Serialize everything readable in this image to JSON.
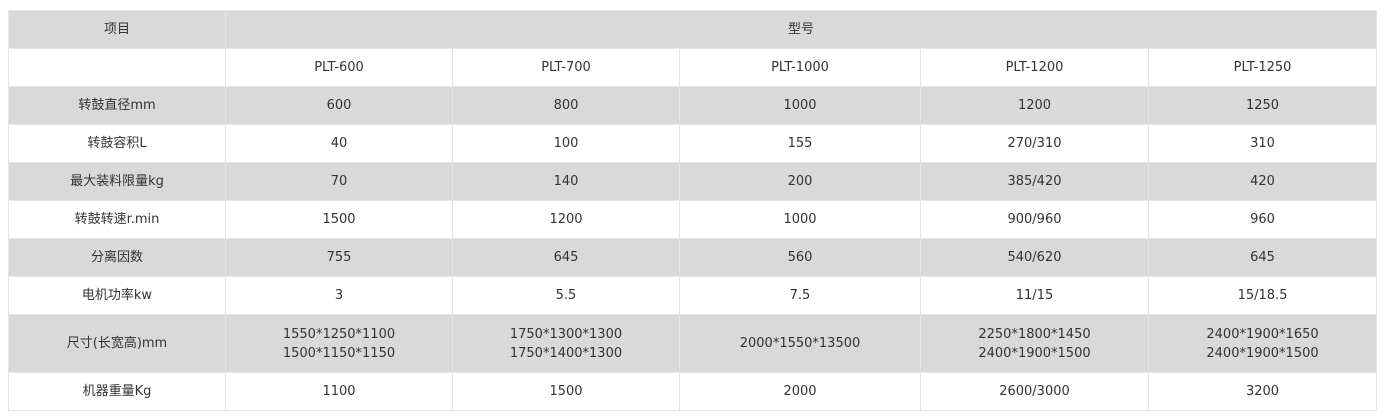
{
  "header": {
    "item_label": "项目",
    "model_label": "型号"
  },
  "models": [
    "PLT-600",
    "PLT-700",
    "PLT-1000",
    "PLT-1200",
    "PLT-1250"
  ],
  "rows": [
    {
      "label": "转鼓直径mm",
      "values": [
        [
          "600"
        ],
        [
          "800"
        ],
        [
          "1000"
        ],
        [
          "1200"
        ],
        [
          "1250"
        ]
      ]
    },
    {
      "label": "转鼓容积L",
      "values": [
        [
          "40"
        ],
        [
          "100"
        ],
        [
          "155"
        ],
        [
          "270/310"
        ],
        [
          "310"
        ]
      ]
    },
    {
      "label": "最大装料限量kg",
      "values": [
        [
          "70"
        ],
        [
          "140"
        ],
        [
          "200"
        ],
        [
          "385/420"
        ],
        [
          "420"
        ]
      ]
    },
    {
      "label": "转鼓转速r.min",
      "values": [
        [
          "1500"
        ],
        [
          "1200"
        ],
        [
          "1000"
        ],
        [
          "900/960"
        ],
        [
          "960"
        ]
      ]
    },
    {
      "label": "分离因数",
      "values": [
        [
          "755"
        ],
        [
          "645"
        ],
        [
          "560"
        ],
        [
          "540/620"
        ],
        [
          "645"
        ]
      ]
    },
    {
      "label": "电机功率kw",
      "values": [
        [
          "3"
        ],
        [
          "5.5"
        ],
        [
          "7.5"
        ],
        [
          "11/15"
        ],
        [
          "15/18.5"
        ]
      ]
    },
    {
      "label": "尺寸(长宽高)mm",
      "values": [
        [
          "1550*1250*1100",
          "1500*1150*1150"
        ],
        [
          "1750*1300*1300",
          "1750*1400*1300"
        ],
        [
          "2000*1550*13500"
        ],
        [
          "2250*1800*1450",
          "2400*1900*1500"
        ],
        [
          "2400*1900*1650",
          "2400*1900*1500"
        ]
      ]
    },
    {
      "label": "机器重量Kg",
      "values": [
        [
          "1100"
        ],
        [
          "1500"
        ],
        [
          "2000"
        ],
        [
          "2600/3000"
        ],
        [
          "3200"
        ]
      ]
    }
  ],
  "colors": {
    "header_bg": "#d9d9d9",
    "text": "#333333",
    "border": "#e4e4e4"
  }
}
